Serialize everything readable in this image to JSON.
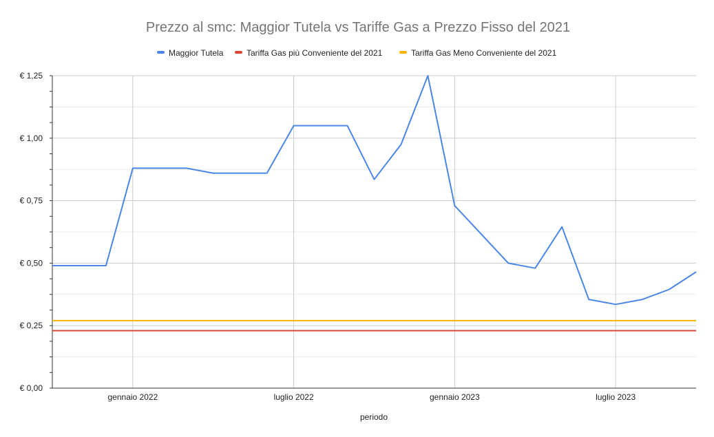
{
  "chart_data": {
    "type": "line",
    "title": "Prezzo al smc: Maggior Tutela vs Tariffe Gas a Prezzo Fisso del 2021",
    "xlabel": "periodo",
    "ylabel": "",
    "ylim": [
      0,
      1.25
    ],
    "y_ticks": [
      "€ 0,00",
      "€ 0,25",
      "€ 0,50",
      "€ 0,75",
      "€ 1,00",
      "€ 1,25"
    ],
    "y_tick_values": [
      0,
      0.25,
      0.5,
      0.75,
      1.0,
      1.25
    ],
    "x_ticks": [
      "gennaio 2022",
      "luglio 2022",
      "gennaio 2023",
      "luglio 2023"
    ],
    "x_tick_index": [
      3,
      9,
      15,
      21
    ],
    "legend_position": "top",
    "grid": true,
    "x": [
      "2021-10",
      "2021-11",
      "2021-12",
      "2022-01",
      "2022-02",
      "2022-03",
      "2022-04",
      "2022-05",
      "2022-06",
      "2022-07",
      "2022-08",
      "2022-09",
      "2022-10",
      "2022-11",
      "2022-12",
      "2023-01",
      "2023-02",
      "2023-03",
      "2023-04",
      "2023-05",
      "2023-06",
      "2023-07",
      "2023-08",
      "2023-09",
      "2023-10"
    ],
    "series": [
      {
        "name": "Maggior Tutela",
        "color": "#4a86e8",
        "values": [
          0.49,
          0.49,
          0.49,
          0.88,
          0.88,
          0.88,
          0.86,
          0.86,
          0.86,
          1.05,
          1.05,
          1.05,
          0.835,
          0.975,
          1.25,
          0.73,
          0.615,
          0.5,
          0.48,
          0.645,
          0.355,
          0.335,
          0.355,
          0.395,
          0.465
        ]
      },
      {
        "name": "Tariffa Gas più Conveniente del 2021",
        "color": "#db4437",
        "values": [
          0.23,
          0.23,
          0.23,
          0.23,
          0.23,
          0.23,
          0.23,
          0.23,
          0.23,
          0.23,
          0.23,
          0.23,
          0.23,
          0.23,
          0.23,
          0.23,
          0.23,
          0.23,
          0.23,
          0.23,
          0.23,
          0.23,
          0.23,
          0.23,
          0.23
        ]
      },
      {
        "name": "Tariffa Gas Meno Conveniente del 2021",
        "color": "#f4b400",
        "values": [
          0.27,
          0.27,
          0.27,
          0.27,
          0.27,
          0.27,
          0.27,
          0.27,
          0.27,
          0.27,
          0.27,
          0.27,
          0.27,
          0.27,
          0.27,
          0.27,
          0.27,
          0.27,
          0.27,
          0.27,
          0.27,
          0.27,
          0.27,
          0.27,
          0.27
        ]
      }
    ]
  }
}
